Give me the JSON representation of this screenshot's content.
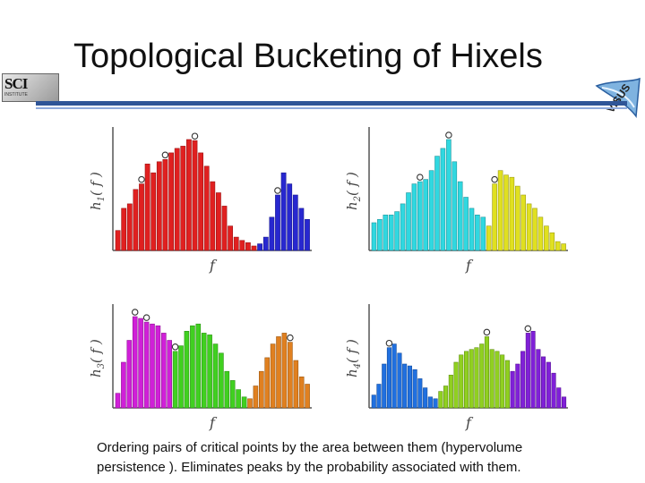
{
  "slide": {
    "title": "Topological Bucketing of Hixels",
    "caption_line1": "Ordering pairs of critical points by the area between them (hypervolume",
    "caption_line2": "persistence ). Eliminates peaks by the probability associated with them."
  },
  "logos": {
    "left_text": "SCI",
    "left_subtext": "INSTITUTE",
    "right_text": "VISUS"
  },
  "colors": {
    "rule": "#2f5597",
    "axis": "#555555"
  },
  "panels": [
    {
      "id": "h1",
      "ylabel_main": "h",
      "ylabel_sub": "1",
      "ylabel_tail": "( f )",
      "xlabel": "f",
      "groups": [
        {
          "color": "#e02020",
          "values": [
            0.18,
            0.38,
            0.42,
            0.55,
            0.6,
            0.78,
            0.7,
            0.8,
            0.82,
            0.88,
            0.92,
            0.94,
            1.0,
            0.99,
            0.88,
            0.76,
            0.62,
            0.52,
            0.4,
            0.22,
            0.12,
            0.09,
            0.07,
            0.04
          ]
        },
        {
          "color": "#2828d0",
          "values": [
            0.06,
            0.12,
            0.3,
            0.5,
            0.7,
            0.6,
            0.5,
            0.38,
            0.28
          ]
        }
      ],
      "circles": [
        4,
        8,
        13,
        27
      ]
    },
    {
      "id": "h2",
      "ylabel_main": "h",
      "ylabel_sub": "2",
      "ylabel_tail": "( f )",
      "xlabel": "f",
      "groups": [
        {
          "color": "#30d8e0",
          "values": [
            0.25,
            0.28,
            0.32,
            0.32,
            0.35,
            0.42,
            0.52,
            0.6,
            0.62,
            0.64,
            0.72,
            0.85,
            0.92,
            1.0,
            0.8,
            0.62,
            0.48,
            0.38,
            0.32,
            0.3
          ]
        },
        {
          "color": "#e0e020",
          "values": [
            0.22,
            0.6,
            0.72,
            0.68,
            0.66,
            0.58,
            0.5,
            0.42,
            0.38,
            0.3,
            0.22,
            0.16,
            0.08,
            0.06
          ]
        }
      ],
      "circles": [
        8,
        13,
        21
      ]
    },
    {
      "id": "h3",
      "ylabel_main": "h",
      "ylabel_sub": "3",
      "ylabel_tail": "( f )",
      "xlabel": "f",
      "groups": [
        {
          "color": "#d020d8",
          "values": [
            0.16,
            0.5,
            0.74,
            1.0,
            0.98,
            0.94,
            0.92,
            0.9,
            0.82,
            0.74
          ]
        },
        {
          "color": "#40d020",
          "values": [
            0.62,
            0.68,
            0.84,
            0.9,
            0.92,
            0.82,
            0.8,
            0.7,
            0.6,
            0.4,
            0.3,
            0.2,
            0.12
          ]
        },
        {
          "color": "#e08020",
          "values": [
            0.1,
            0.24,
            0.4,
            0.55,
            0.7,
            0.78,
            0.82,
            0.72,
            0.52,
            0.34,
            0.26
          ]
        }
      ],
      "circles": [
        3,
        5,
        10,
        30
      ]
    },
    {
      "id": "h4",
      "ylabel_main": "h",
      "ylabel_sub": "4",
      "ylabel_tail": "( f )",
      "xlabel": "f",
      "groups": [
        {
          "color": "#2070e0",
          "values": [
            0.14,
            0.26,
            0.48,
            0.66,
            0.7,
            0.6,
            0.48,
            0.46,
            0.42,
            0.32,
            0.22,
            0.12,
            0.1
          ]
        },
        {
          "color": "#90d020",
          "values": [
            0.18,
            0.24,
            0.36,
            0.5,
            0.58,
            0.62,
            0.64,
            0.66,
            0.7,
            0.78,
            0.64,
            0.62,
            0.58,
            0.52
          ]
        },
        {
          "color": "#8020d8",
          "values": [
            0.4,
            0.48,
            0.62,
            0.82,
            0.84,
            0.64,
            0.56,
            0.5,
            0.38,
            0.22,
            0.12
          ]
        }
      ],
      "circles": [
        3,
        22,
        30
      ]
    }
  ]
}
